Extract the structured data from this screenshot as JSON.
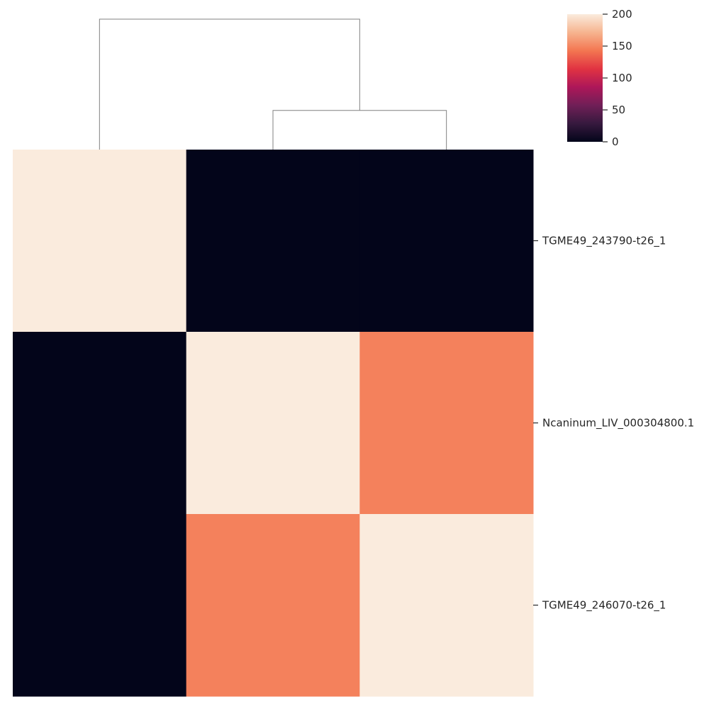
{
  "chart_data": {
    "type": "heatmap",
    "title": "",
    "xlabel": "",
    "ylabel": "",
    "row_labels": [
      "TGME49_243790-t26_1",
      "Ncaninum_LIV_000304800.1",
      "TGME49_246070-t26_1"
    ],
    "column_labels": [],
    "values": [
      [
        200,
        0,
        0
      ],
      [
        0,
        200,
        148
      ],
      [
        0,
        148,
        200
      ]
    ],
    "colorbar": {
      "min": 0,
      "max": 200,
      "ticks": [
        0,
        50,
        100,
        150,
        200
      ],
      "tick_labels": [
        "0",
        "50",
        "100",
        "150",
        "200"
      ],
      "colormap": "rocket",
      "color_stops": [
        "#03051a",
        "#36193e",
        "#701f57",
        "#ad1759",
        "#e13342",
        "#f37651",
        "#f6b48f",
        "#faebdd"
      ]
    },
    "column_dendrogram": {
      "leaf_order": [
        0,
        1,
        2
      ],
      "merges": [
        {
          "left": 1,
          "right": 2,
          "height": 0.3
        },
        {
          "left": 0,
          "right": "cluster-1-2",
          "height": 1.0
        }
      ]
    },
    "dendrogram_color": "#808080"
  }
}
